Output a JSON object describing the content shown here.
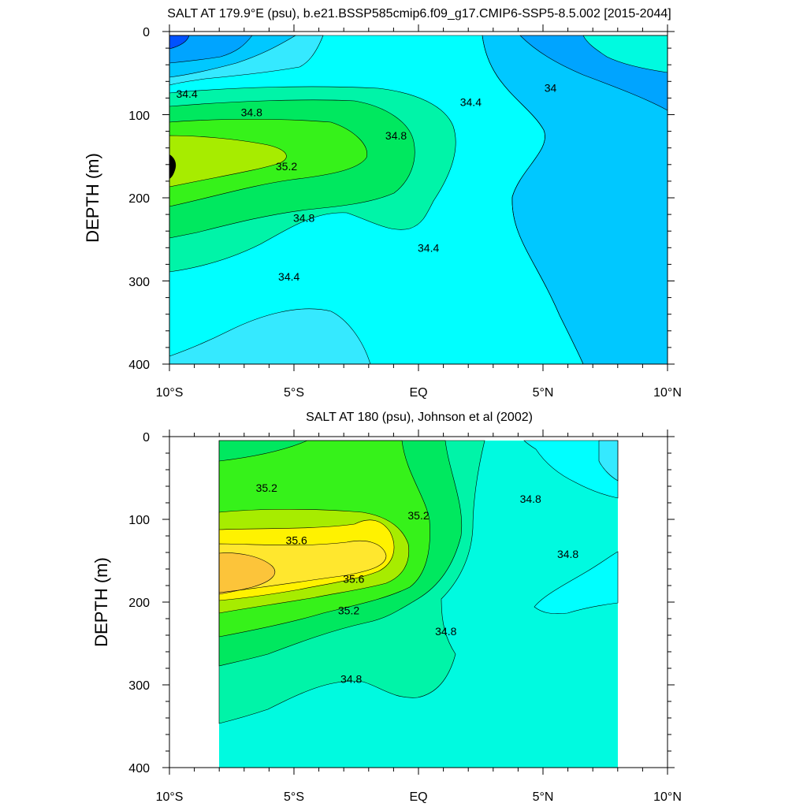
{
  "chart_data": [
    {
      "type": "contour",
      "title": "SALT AT 179.9°E (psu), b.e21.BSSP585cmip6.f09_g17.CMIP6-SSP5-8.5.002 [2015-2044]",
      "ylabel": "DEPTH (m)",
      "xlabel": "",
      "x_ticks": [
        "10°S",
        "5°S",
        "EQ",
        "5°N",
        "10°N"
      ],
      "y_ticks": [
        "0",
        "100",
        "200",
        "300",
        "400"
      ],
      "xlim": [
        -10,
        10
      ],
      "ylim": [
        400,
        0
      ],
      "data_extent": {
        "lat": [
          -10,
          10
        ],
        "depth": [
          5,
          400
        ]
      },
      "contour_levels": [
        33.6,
        33.8,
        34.0,
        34.2,
        34.4,
        34.6,
        34.8,
        35.0,
        35.2,
        35.4
      ],
      "labeled_contours": [
        {
          "text": "34.4",
          "lat": -9.3,
          "depth": 75
        },
        {
          "text": "34.8",
          "lat": -6.7,
          "depth": 97
        },
        {
          "text": "35.2",
          "lat": -5.3,
          "depth": 162
        },
        {
          "text": "34.8",
          "lat": -4.6,
          "depth": 224
        },
        {
          "text": "34.4",
          "lat": -5.2,
          "depth": 295
        },
        {
          "text": "34.8",
          "lat": -0.9,
          "depth": 125
        },
        {
          "text": "34.4",
          "lat": 2.1,
          "depth": 85
        },
        {
          "text": "34.4",
          "lat": 0.4,
          "depth": 260
        },
        {
          "text": "34",
          "lat": 5.3,
          "depth": 68
        }
      ],
      "regions": [
        {
          "salinity": 34.4,
          "color": "#35e9ff"
        },
        {
          "salinity": 34.3,
          "color": "#00ffff"
        },
        {
          "salinity": 34.2,
          "color": "#35e9ff"
        },
        {
          "salinity": 34.0,
          "color": "#00c8ff"
        },
        {
          "salinity": 33.9,
          "color": "#00a4ff"
        },
        {
          "salinity": 33.7,
          "color": "#0052ff"
        },
        {
          "salinity": 34.1,
          "color": "#00c8ff"
        },
        {
          "salinity": 34.0,
          "color": "#00a4ff"
        },
        {
          "salinity": 34.6,
          "color": "#00fae0"
        },
        {
          "salinity": 34.9,
          "color": "#00f4a8"
        },
        {
          "salinity": 35.1,
          "color": "#00e85f"
        },
        {
          "salinity": 35.3,
          "color": "#36f21a"
        },
        {
          "salinity": 35.4,
          "color": "#a7ec00"
        }
      ]
    },
    {
      "type": "contour",
      "title": "SALT AT 180 (psu), Johnson et al (2002)",
      "ylabel": "DEPTH (m)",
      "xlabel": "",
      "x_ticks": [
        "10°S",
        "5°S",
        "EQ",
        "5°N",
        "10°N"
      ],
      "y_ticks": [
        "0",
        "100",
        "200",
        "300",
        "400"
      ],
      "xlim": [
        -10,
        10
      ],
      "ylim": [
        400,
        0
      ],
      "data_extent": {
        "lat": [
          -8,
          8
        ],
        "depth": [
          5,
          400
        ]
      },
      "contour_levels": [
        34.4,
        34.6,
        34.8,
        35.0,
        35.2,
        35.4,
        35.6,
        35.8
      ],
      "labeled_contours": [
        {
          "text": "35.2",
          "lat": -6.1,
          "depth": 62
        },
        {
          "text": "35.6",
          "lat": -4.9,
          "depth": 125
        },
        {
          "text": "35.6",
          "lat": -2.6,
          "depth": 172
        },
        {
          "text": "35.2",
          "lat": -2.8,
          "depth": 210
        },
        {
          "text": "35.2",
          "lat": 0.0,
          "depth": 95
        },
        {
          "text": "34.8",
          "lat": 1.1,
          "depth": 235
        },
        {
          "text": "34.8",
          "lat": 4.5,
          "depth": 75
        },
        {
          "text": "34.8",
          "lat": 6.0,
          "depth": 142
        },
        {
          "text": "34.8",
          "lat": -2.7,
          "depth": 293
        }
      ],
      "regions": [
        {
          "salinity": 34.7,
          "color": "#00fae0"
        },
        {
          "salinity": 34.4,
          "color": "#00ffff"
        },
        {
          "salinity": 34.3,
          "color": "#35e9ff"
        },
        {
          "salinity": 34.4,
          "color": "#00ffff"
        },
        {
          "salinity": 34.9,
          "color": "#00f4a8"
        },
        {
          "salinity": 35.1,
          "color": "#00e85f"
        },
        {
          "salinity": 35.3,
          "color": "#36f21a"
        },
        {
          "salinity": 35.5,
          "color": "#a7ec00"
        },
        {
          "salinity": 35.7,
          "color": "#fff200"
        },
        {
          "salinity": 35.7,
          "color": "#ffe72e"
        },
        {
          "salinity": 35.9,
          "color": "#fcc43a"
        }
      ]
    }
  ]
}
